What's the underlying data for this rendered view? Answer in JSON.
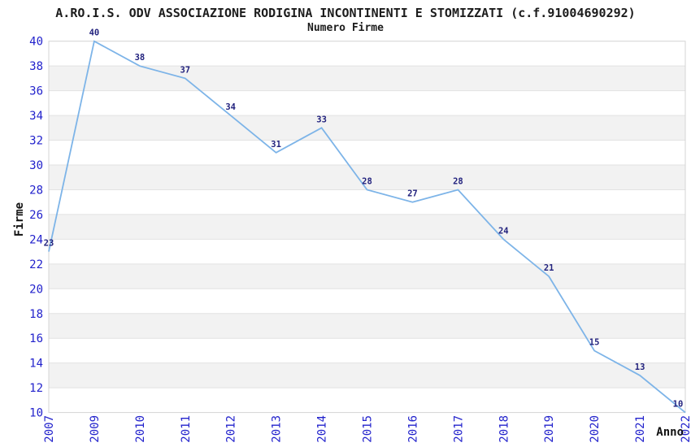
{
  "header": {
    "title": "A.RO.I.S. ODV ASSOCIAZIONE RODIGINA INCONTINENTI E STOMIZZATI (c.f.91004690292)",
    "subtitle": "Numero Firme"
  },
  "colors": {
    "line": "#7db4e8",
    "tick_label": "#2222cc",
    "point_label": "#22227e",
    "band": "#f2f2f2",
    "gridline": "#e2e2e2",
    "frame": "#d4d4d4",
    "title_text": "#1c1c1c",
    "axis_title_text": "#111111",
    "background": "#ffffff"
  },
  "chart_data": {
    "type": "line",
    "title": "A.RO.I.S. ODV ASSOCIAZIONE RODIGINA INCONTINENTI E STOMIZZATI (c.f.91004690292)",
    "subtitle": "Numero Firme",
    "xlabel": "Anno",
    "ylabel": "Firme",
    "categories": [
      "2007",
      "2009",
      "2010",
      "2011",
      "2012",
      "2013",
      "2014",
      "2015",
      "2016",
      "2017",
      "2018",
      "2019",
      "2020",
      "2021",
      "2022"
    ],
    "values": [
      23,
      40,
      38,
      37,
      34,
      31,
      33,
      28,
      27,
      28,
      24,
      21,
      15,
      13,
      10
    ],
    "point_labels": [
      "23",
      "40",
      "38",
      "37",
      "34",
      "31",
      "33",
      "28",
      "27",
      "28",
      "24",
      "21",
      "15",
      "13",
      "10"
    ],
    "ylim": [
      10,
      40
    ],
    "ytick_step": 2,
    "x_tick_rotation": -90,
    "grid": "horizontal",
    "band_fill": "alternating-horizontal",
    "legend": "none",
    "markers": "none",
    "note": "year 2008 absent from x axis"
  }
}
